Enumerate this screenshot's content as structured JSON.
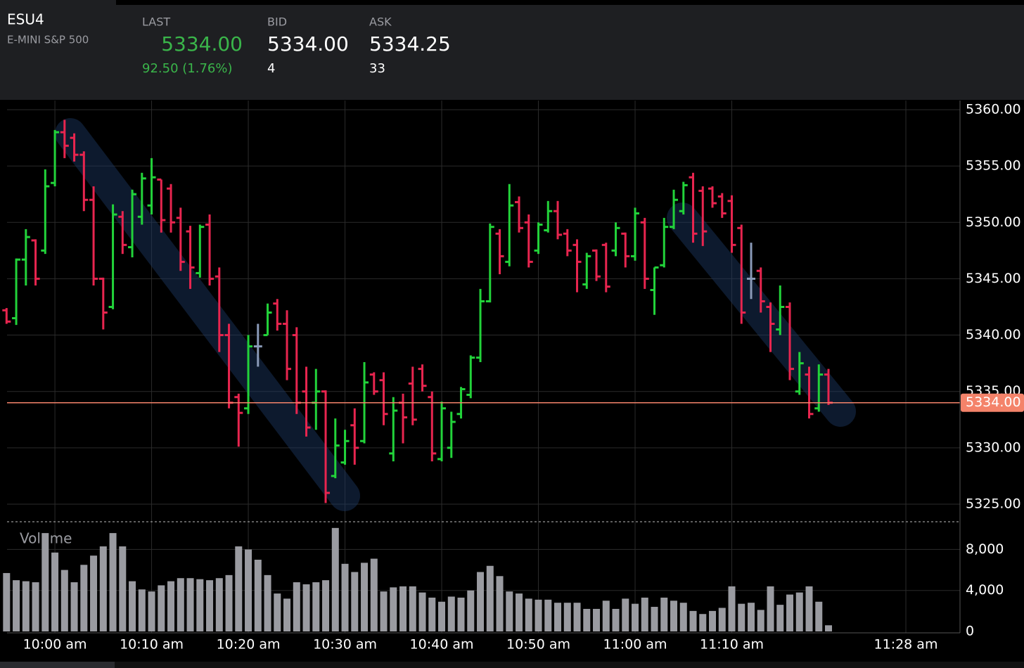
{
  "header": {
    "symbol": "ESU4",
    "name": "E-MINI S&P 500",
    "quotes": [
      {
        "label": "LAST",
        "value": "5334.00",
        "detail": "92.50 (1.76%)"
      },
      {
        "label": "BID",
        "value": "5334.00",
        "detail": "4"
      },
      {
        "label": "ASK",
        "value": "5334.25",
        "detail": "33"
      }
    ]
  },
  "chart_data": [
    {
      "type": "ohlc",
      "up_color": "#22d33a",
      "down_color": "#e8254f",
      "flat_color": "#8a9ab8",
      "grid": true,
      "x": [
        595,
        596,
        597,
        598,
        599,
        600,
        601,
        602,
        603,
        604,
        605,
        606,
        607,
        608,
        609,
        610,
        611,
        612,
        613,
        614,
        615,
        616,
        617,
        618,
        619,
        620,
        621,
        622,
        623,
        624,
        625,
        626,
        627,
        628,
        629,
        630,
        631,
        632,
        633,
        634,
        635,
        636,
        637,
        638,
        639,
        640,
        641,
        642,
        643,
        644,
        645,
        646,
        647,
        648,
        649,
        650,
        651,
        652,
        653,
        654,
        655,
        656,
        657,
        658,
        659,
        660,
        661,
        662,
        663,
        664,
        665,
        666,
        667,
        668,
        669,
        670,
        671,
        672,
        673,
        674,
        675,
        676,
        677,
        678,
        679,
        680
      ],
      "open": [
        5342.2,
        5341.5,
        5346.7,
        5348.4,
        5347.5,
        5353.5,
        5358,
        5357.5,
        5356,
        5352,
        5345,
        5342.5,
        5350.5,
        5347.8,
        5350.5,
        5351.5,
        5353.8,
        5353,
        5350.4,
        5349.2,
        5345.5,
        5349.8,
        5345.2,
        5340,
        5334.5,
        5333.5,
        5339,
        5340,
        5342.8,
        5341,
        5340,
        5335,
        5334,
        5335,
        5327.5,
        5328.7,
        5332,
        5330.6,
        5336.5,
        5336,
        5329.5,
        5334,
        5335.7,
        5337,
        5334.5,
        5329,
        5330,
        5333,
        5334.7,
        5338,
        5343,
        5349,
        5346.5,
        5351.8,
        5350,
        5347.5,
        5349.3,
        5351,
        5349,
        5348,
        5344.5,
        5347.5,
        5348,
        5347.5,
        5349,
        5347,
        5350,
        5344,
        5346.2,
        5349.6,
        5351,
        5354,
        5352.8,
        5353,
        5352.3,
        5351.9,
        5349.5,
        5345,
        5345.7,
        5342.5,
        5340.5,
        5342.5,
        5335,
        5336.5,
        5333.5,
        5336.5
      ],
      "high": [
        5342.4,
        5346.8,
        5349.4,
        5348.5,
        5354.7,
        5358.2,
        5359.1,
        5357.9,
        5356.3,
        5353.2,
        5345.1,
        5351.6,
        5351,
        5352.9,
        5354.4,
        5355.7,
        5353.8,
        5353.4,
        5351.3,
        5349.7,
        5349.8,
        5350.7,
        5346,
        5341,
        5334.8,
        5340,
        5341,
        5342.8,
        5343.2,
        5342.2,
        5340.7,
        5337.2,
        5337,
        5335.1,
        5332.6,
        5331.6,
        5333.5,
        5337.6,
        5336.7,
        5336.7,
        5334.5,
        5334.8,
        5337.2,
        5337.4,
        5335,
        5334.1,
        5333.2,
        5335.4,
        5338.2,
        5344.1,
        5349.9,
        5349.4,
        5353.4,
        5352.3,
        5350.7,
        5350,
        5351.9,
        5351.9,
        5349.4,
        5348.5,
        5347.3,
        5347.6,
        5348.2,
        5350,
        5349.1,
        5351.3,
        5350.4,
        5346,
        5350.4,
        5352.9,
        5353.6,
        5354.4,
        5353.2,
        5353.2,
        5352.6,
        5352.4,
        5349.8,
        5348.2,
        5346,
        5342.9,
        5344.4,
        5342.9,
        5338.5,
        5337.2,
        5337.4,
        5337
      ],
      "low": [
        5341,
        5340.9,
        5344.4,
        5344.4,
        5347.2,
        5353.2,
        5355.7,
        5355.4,
        5351,
        5344.4,
        5340.5,
        5342.3,
        5347.2,
        5346.9,
        5349.8,
        5350.7,
        5349.1,
        5349.1,
        5345.7,
        5344.1,
        5345.1,
        5344.4,
        5338.5,
        5333.5,
        5330.1,
        5333,
        5337.2,
        5340,
        5340.4,
        5336,
        5333,
        5331,
        5331.6,
        5325.1,
        5327.3,
        5328.5,
        5328.5,
        5330.4,
        5334.7,
        5332,
        5328.8,
        5330.4,
        5332,
        5335,
        5328.8,
        5328.8,
        5329.1,
        5332.6,
        5334.4,
        5337.6,
        5342.9,
        5345.4,
        5346.1,
        5349.1,
        5346,
        5347.2,
        5349.1,
        5348.5,
        5347,
        5343.8,
        5344.1,
        5344.8,
        5343.8,
        5347,
        5346,
        5346.6,
        5344.1,
        5341.8,
        5346,
        5349.4,
        5350.7,
        5348.2,
        5347.9,
        5351.3,
        5350.4,
        5347.3,
        5341,
        5343.2,
        5342,
        5338.5,
        5340,
        5336,
        5334.7,
        5332.6,
        5333.2,
        5333.8
      ],
      "close": [
        5341.2,
        5346.7,
        5348.7,
        5345,
        5353.2,
        5358,
        5356.8,
        5356,
        5352,
        5345,
        5342,
        5350.7,
        5348,
        5352.5,
        5353.9,
        5354,
        5350.2,
        5350,
        5346.5,
        5346,
        5349.6,
        5345,
        5340,
        5334,
        5333.1,
        5339,
        5339,
        5342,
        5341,
        5337,
        5334,
        5331.8,
        5335,
        5326,
        5330.2,
        5330.6,
        5330,
        5335.8,
        5335,
        5333,
        5333.3,
        5332.7,
        5332.5,
        5335.5,
        5329.5,
        5333.5,
        5332.3,
        5335.2,
        5338,
        5343,
        5349.6,
        5347,
        5351.5,
        5349.5,
        5346.5,
        5349.8,
        5351,
        5348.9,
        5347.5,
        5346.5,
        5347,
        5345.2,
        5344.3,
        5349.5,
        5347,
        5350.8,
        5345,
        5346,
        5349.6,
        5352,
        5353.3,
        5349,
        5349.2,
        5351.7,
        5350.8,
        5348,
        5342,
        5345,
        5343,
        5341,
        5342.5,
        5337,
        5337.5,
        5333,
        5336.5,
        5334
      ],
      "xlim": [
        595.05,
        693.6
      ],
      "ylim": [
        5323.44,
        5360.81
      ],
      "yticks": [
        {
          "value": 5325,
          "label": "5325.00"
        },
        {
          "value": 5330,
          "label": "5330.00"
        },
        {
          "value": 5335,
          "label": "5335.00"
        },
        {
          "value": 5340,
          "label": "5340.00"
        },
        {
          "value": 5345,
          "label": "5345.00"
        },
        {
          "value": 5350,
          "label": "5350.00"
        },
        {
          "value": 5355,
          "label": "5355.00"
        },
        {
          "value": 5360,
          "label": "5360.00"
        }
      ],
      "last_price": {
        "value": 5334,
        "label": "5334.00"
      },
      "last_price_color": "#f4836a"
    },
    {
      "type": "bar",
      "title": "Volume",
      "color": "#9a9ba1",
      "grid": true,
      "x": [
        595,
        596,
        597,
        598,
        599,
        600,
        601,
        602,
        603,
        604,
        605,
        606,
        607,
        608,
        609,
        610,
        611,
        612,
        613,
        614,
        615,
        616,
        617,
        618,
        619,
        620,
        621,
        622,
        623,
        624,
        625,
        626,
        627,
        628,
        629,
        630,
        631,
        632,
        633,
        634,
        635,
        636,
        637,
        638,
        639,
        640,
        641,
        642,
        643,
        644,
        645,
        646,
        647,
        648,
        649,
        650,
        651,
        652,
        653,
        654,
        655,
        656,
        657,
        658,
        659,
        660,
        661,
        662,
        663,
        664,
        665,
        666,
        667,
        668,
        669,
        670,
        671,
        672,
        673,
        674,
        675,
        676,
        677,
        678,
        679,
        680
      ],
      "values": [
        5700,
        5000,
        4900,
        4800,
        9600,
        7700,
        6000,
        4800,
        6500,
        7400,
        8300,
        9600,
        8300,
        4900,
        4100,
        3900,
        4500,
        4900,
        5200,
        5200,
        5100,
        5000,
        5200,
        5500,
        8300,
        8000,
        7000,
        5500,
        3700,
        3200,
        4800,
        4600,
        4800,
        5000,
        10100,
        6600,
        5800,
        6700,
        7100,
        3900,
        4300,
        4400,
        4400,
        3800,
        3300,
        2900,
        3400,
        3300,
        4000,
        5800,
        6400,
        5400,
        3900,
        3700,
        3200,
        3100,
        3100,
        2800,
        2800,
        2800,
        2200,
        2200,
        3000,
        2200,
        3200,
        2700,
        3300,
        2400,
        3300,
        3000,
        2800,
        2000,
        1700,
        2000,
        2300,
        4400,
        2700,
        2800,
        2100,
        4400,
        2600,
        3600,
        3800,
        4400,
        2900,
        600
      ],
      "xlim": [
        595.05,
        693.6
      ],
      "xticks": [
        {
          "value": 600,
          "label": "10:00 am"
        },
        {
          "value": 610,
          "label": "10:10 am"
        },
        {
          "value": 620,
          "label": "10:20 am"
        },
        {
          "value": 630,
          "label": "10:30 am"
        },
        {
          "value": 640,
          "label": "10:40 am"
        },
        {
          "value": 650,
          "label": "10:50 am"
        },
        {
          "value": 660,
          "label": "11:00 am"
        },
        {
          "value": 670,
          "label": "11:10 am"
        },
        {
          "value": 688,
          "label": "11:28 am"
        }
      ],
      "ylim": [
        0,
        10500
      ],
      "yticks": [
        0,
        {
          "value": 4000,
          "label": "4,000"
        },
        {
          "value": 8000,
          "label": "8,000"
        }
      ]
    }
  ]
}
